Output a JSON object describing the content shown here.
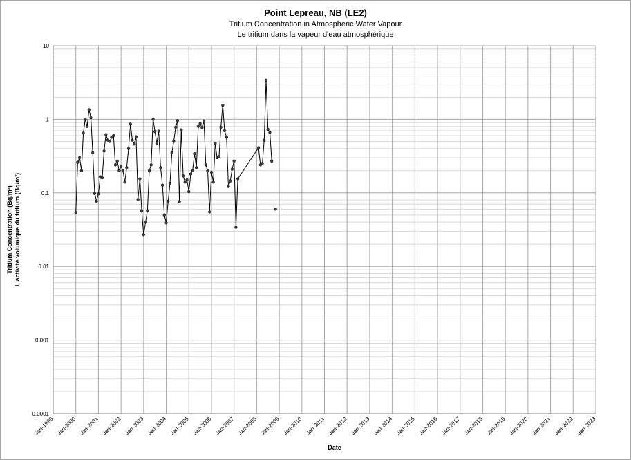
{
  "chart_data": {
    "type": "line",
    "title": "Point Lepreau, NB (LE2)",
    "subtitle_en": "Tritium Concentration in Atmospheric Water Vapour",
    "subtitle_fr": "Le tritium dans la vapeur d'eau atmosphérique",
    "ylabel_en": "Tritium Concentration (Bq/m³)",
    "ylabel_fr": "L'activité volumique du tritium (Bq/m³)",
    "xlabel": "Date",
    "yscale": "log",
    "ylim": [
      0.0001,
      10
    ],
    "ytick_labels": [
      "10",
      "1",
      "0.1",
      "0.01",
      "0.001",
      "0.0001"
    ],
    "xlim": [
      "1999-01",
      "2023-01"
    ],
    "xtick_labels": [
      "Jan-1999",
      "Jan-2000",
      "Jan-2001",
      "Jan-2002",
      "Jan-2003",
      "Jan-2004",
      "Jan-2005",
      "Jan-2006",
      "Jan-2007",
      "Jan-2008",
      "Jan-2009",
      "Jan-2010",
      "Jan-2011",
      "Jan-2012",
      "Jan-2013",
      "Jan-2014",
      "Jan-2015",
      "Jan-2016",
      "Jan-2017",
      "Jan-2018",
      "Jan-2019",
      "Jan-2020",
      "Jan-2021",
      "Jan-2022",
      "Jan-2023"
    ],
    "grid": true,
    "series": [
      {
        "color": "#000000",
        "points": [
          [
            "2000-01",
            0.054
          ],
          [
            "2000-02",
            0.26
          ],
          [
            "2000-03",
            0.3
          ],
          [
            "2000-04",
            0.2
          ],
          [
            "2000-05",
            0.65
          ],
          [
            "2000-06",
            1.0
          ],
          [
            "2000-07",
            0.8
          ],
          [
            "2000-08",
            1.35
          ],
          [
            "2000-09",
            1.05
          ],
          [
            "2000-10",
            0.35
          ],
          [
            "2000-11",
            0.098
          ],
          [
            "2000-12",
            0.077
          ],
          [
            "2001-01",
            0.097
          ],
          [
            "2001-02",
            0.165
          ],
          [
            "2001-03",
            0.16
          ],
          [
            "2001-04",
            0.37
          ],
          [
            "2001-05",
            0.62
          ],
          [
            "2001-06",
            0.52
          ],
          [
            "2001-07",
            0.5
          ],
          [
            "2001-08",
            0.57
          ],
          [
            "2001-09",
            0.6
          ],
          [
            "2001-10",
            0.24
          ],
          [
            "2001-11",
            0.27
          ],
          [
            "2001-12",
            0.2
          ],
          [
            "2002-01",
            0.23
          ],
          [
            "2002-02",
            0.2
          ],
          [
            "2002-03",
            0.14
          ],
          [
            "2002-04",
            0.22
          ],
          [
            "2002-05",
            0.4
          ],
          [
            "2002-06",
            0.86
          ],
          [
            "2002-07",
            0.52
          ],
          [
            "2002-08",
            0.46
          ],
          [
            "2002-09",
            0.58
          ],
          [
            "2002-10",
            0.081
          ],
          [
            "2002-11",
            0.155
          ],
          [
            "2002-12",
            0.057
          ],
          [
            "2003-01",
            0.027
          ],
          [
            "2003-02",
            0.04
          ],
          [
            "2003-03",
            0.057
          ],
          [
            "2003-04",
            0.2
          ],
          [
            "2003-05",
            0.24
          ],
          [
            "2003-06",
            1.0
          ],
          [
            "2003-07",
            0.68
          ],
          [
            "2003-08",
            0.47
          ],
          [
            "2003-09",
            0.69
          ],
          [
            "2003-10",
            0.22
          ],
          [
            "2003-11",
            0.127
          ],
          [
            "2003-12",
            0.05
          ],
          [
            "2004-01",
            0.039
          ],
          [
            "2004-02",
            0.077
          ],
          [
            "2004-03",
            0.135
          ],
          [
            "2004-04",
            0.35
          ],
          [
            "2004-05",
            0.5
          ],
          [
            "2004-06",
            0.78
          ],
          [
            "2004-07",
            0.96
          ],
          [
            "2004-08",
            0.076
          ],
          [
            "2004-09",
            0.72
          ],
          [
            "2004-10",
            0.17
          ],
          [
            "2004-11",
            0.14
          ],
          [
            "2004-12",
            0.15
          ],
          [
            "2005-01",
            0.104
          ],
          [
            "2005-02",
            0.18
          ],
          [
            "2005-03",
            0.2
          ],
          [
            "2005-04",
            0.34
          ],
          [
            "2005-05",
            0.22
          ],
          [
            "2005-06",
            0.8
          ],
          [
            "2005-07",
            0.87
          ],
          [
            "2005-08",
            0.77
          ],
          [
            "2005-09",
            0.95
          ],
          [
            "2005-10",
            0.24
          ],
          [
            "2005-11",
            0.2
          ],
          [
            "2005-12",
            0.055
          ],
          [
            "2006-01",
            0.19
          ],
          [
            "2006-02",
            0.14
          ],
          [
            "2006-03",
            0.47
          ],
          [
            "2006-04",
            0.3
          ],
          [
            "2006-05",
            0.31
          ],
          [
            "2006-06",
            0.78
          ],
          [
            "2006-07",
            1.55
          ],
          [
            "2006-08",
            0.7
          ],
          [
            "2006-09",
            0.57
          ],
          [
            "2006-10",
            0.122
          ],
          [
            "2006-11",
            0.145
          ],
          [
            "2006-12",
            0.21
          ],
          [
            "2007-01",
            0.27
          ],
          [
            "2007-02",
            0.034
          ],
          [
            "2007-03",
            0.155
          ],
          [
            "2008-02",
            0.41
          ],
          [
            "2008-03",
            0.24
          ],
          [
            "2008-04",
            0.25
          ],
          [
            "2008-05",
            0.52
          ],
          [
            "2008-06",
            3.4
          ],
          [
            "2008-07",
            0.73
          ],
          [
            "2008-08",
            0.66
          ],
          [
            "2008-09",
            0.27
          ],
          null,
          [
            "2008-11",
            0.06
          ]
        ]
      }
    ]
  }
}
